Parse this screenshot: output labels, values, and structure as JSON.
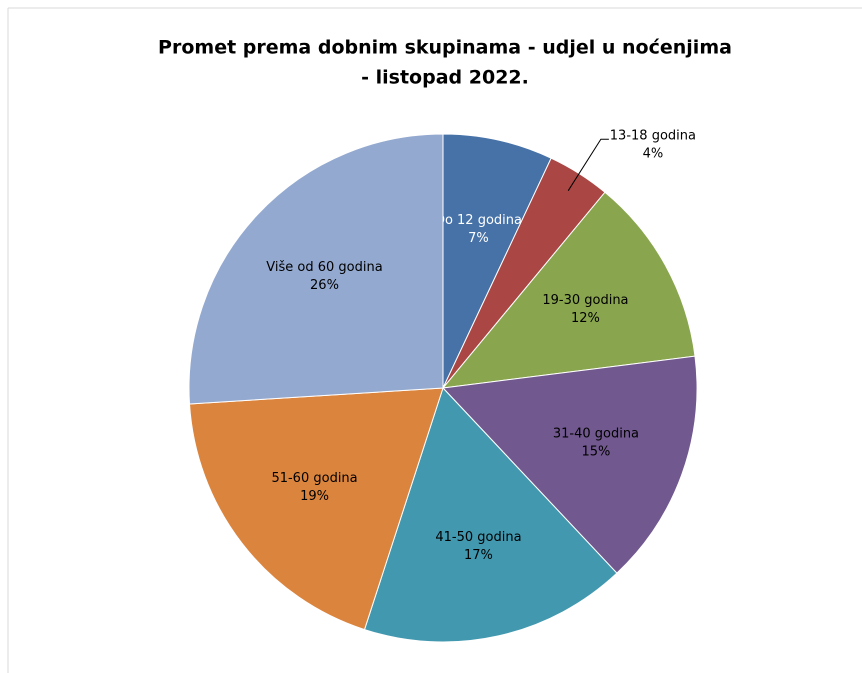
{
  "chart_data": {
    "type": "pie",
    "title": [
      "Promet prema dobnim skupinama - udjel u noćenjima",
      "- listopad 2022."
    ],
    "categories": [
      "Do 12 godina",
      "13-18 godina",
      "19-30 godina",
      "31-40 godina",
      "41-50 godina",
      "51-60 godina",
      "Više od 60 godina"
    ],
    "values": [
      7,
      4,
      12,
      15,
      17,
      19,
      26
    ],
    "value_labels": [
      "7%",
      "4%",
      "12%",
      "15%",
      "17%",
      "19%",
      "26%"
    ],
    "colors": [
      "#4672a8",
      "#aa4643",
      "#89a54e",
      "#71588f",
      "#4198af",
      "#db843d",
      "#93a9cf"
    ]
  }
}
